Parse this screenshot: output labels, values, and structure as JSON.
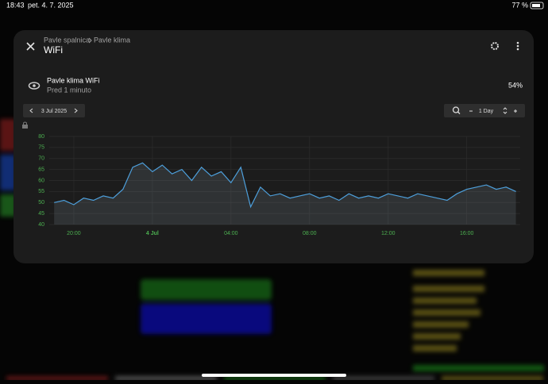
{
  "status_bar": {
    "time": "18:43",
    "date": "pet. 4. 7. 2025",
    "battery": "77 %"
  },
  "dialog": {
    "breadcrumb": [
      "Pavle spalnica",
      "Pavle klima"
    ],
    "title": "WiFi",
    "entity": {
      "name": "Pavle klima WiFi",
      "updated": "Pred 1 minuto",
      "state": "54%"
    },
    "date_picker": "3 Jul 2025",
    "zoom": "1 Day"
  },
  "chart_data": {
    "type": "line",
    "x": [
      19,
      19.5,
      20,
      20.5,
      21,
      21.5,
      22,
      22.5,
      23,
      23.5,
      24,
      24.5,
      25,
      25.5,
      26,
      26.5,
      27,
      27.5,
      28,
      28.5,
      29,
      29.5,
      30,
      30.5,
      31,
      31.5,
      32,
      32.5,
      33,
      33.5,
      34,
      34.5,
      35,
      35.5,
      36,
      36.5,
      37,
      37.5,
      38,
      38.5,
      39,
      39.5,
      40,
      40.5,
      41,
      41.5,
      42,
      42.5
    ],
    "values": [
      50,
      51,
      49,
      52,
      51,
      53,
      52,
      56,
      66,
      68,
      64,
      67,
      63,
      65,
      60,
      66,
      62,
      64,
      59,
      66,
      48,
      57,
      53,
      54,
      52,
      53,
      54,
      52,
      53,
      51,
      54,
      52,
      53,
      52,
      54,
      53,
      52,
      54,
      53,
      52,
      51,
      54,
      56,
      57,
      58,
      56,
      57,
      55
    ],
    "color": "#4d9fdb",
    "xlim": [
      18.75,
      42.72
    ],
    "xticks": [
      {
        "value": 20,
        "label": "20:00"
      },
      {
        "value": 24,
        "label": "4 Jul"
      },
      {
        "value": 28,
        "label": "04:00"
      },
      {
        "value": 32,
        "label": "08:00"
      },
      {
        "value": 36,
        "label": "12:00"
      },
      {
        "value": 40,
        "label": "16:00"
      }
    ],
    "ylim": [
      40,
      80
    ],
    "yticks": [
      40,
      45,
      50,
      55,
      60,
      65,
      70,
      75,
      80
    ],
    "grid": true
  }
}
